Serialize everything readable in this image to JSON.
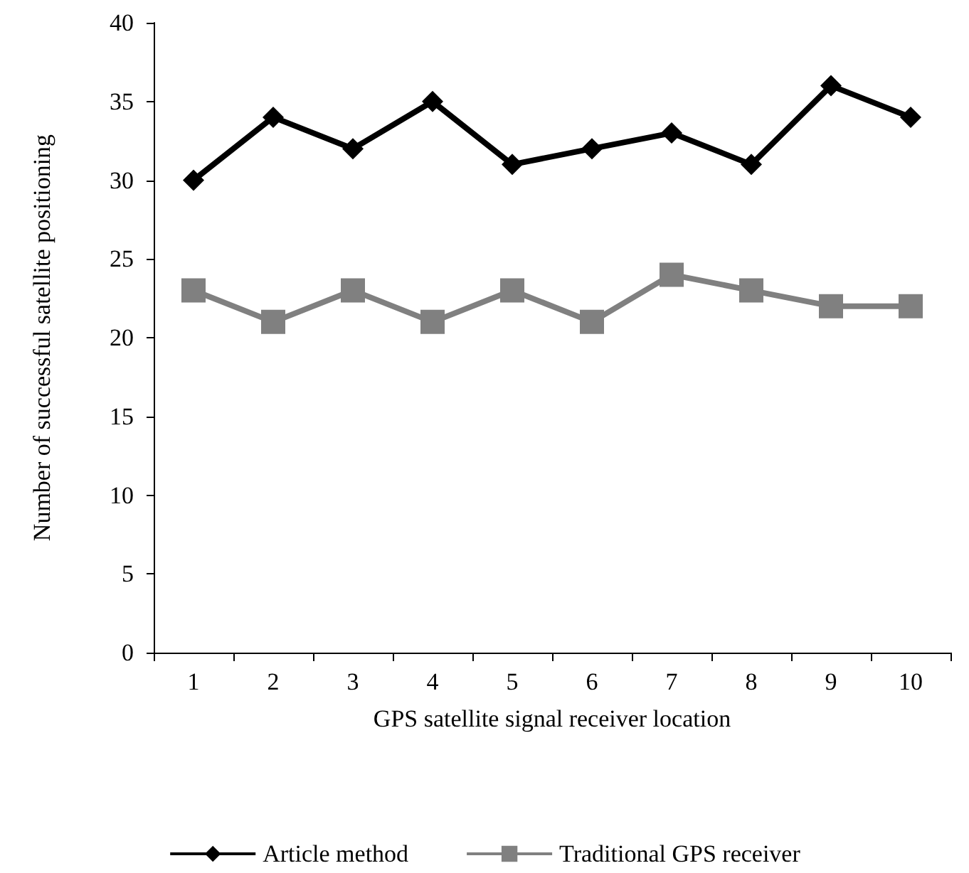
{
  "chart_data": {
    "type": "line",
    "xlabel": "GPS satellite signal receiver location",
    "ylabel": "Number of successful satellite positioning",
    "categories": [
      "1",
      "2",
      "3",
      "4",
      "5",
      "6",
      "7",
      "8",
      "9",
      "10"
    ],
    "series": [
      {
        "name": "Article method",
        "color": "#000000",
        "marker": "diamond",
        "values": [
          30,
          34,
          32,
          35,
          31,
          32,
          33,
          31,
          36,
          34
        ]
      },
      {
        "name": "Traditional GPS receiver",
        "color": "#808080",
        "marker": "square",
        "values": [
          23,
          21,
          23,
          21,
          23,
          21,
          24,
          23,
          22,
          22
        ]
      }
    ],
    "ylim": [
      0,
      40
    ],
    "yticks": [
      0,
      5,
      10,
      15,
      20,
      25,
      30,
      35,
      40
    ],
    "grid": false,
    "legend": "bottom",
    "line_style": "solid"
  }
}
